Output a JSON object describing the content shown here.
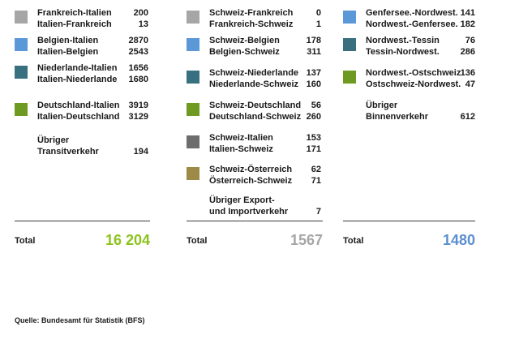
{
  "chart_data": {
    "type": "table",
    "colors": {
      "light_grey": "#a6a6a6",
      "blue": "#5b98d8",
      "teal": "#38707f",
      "green": "#6f9a22",
      "dark_grey": "#6d6d6d",
      "olive": "#9d8a46",
      "total_green": "#8cc31c",
      "total_grey": "#a6a6a6",
      "total_blue": "#5b8fd0"
    },
    "columns": [
      {
        "entries": [
          {
            "color": "light_grey",
            "rows": [
              {
                "label": "Frankreich-Italien",
                "value": "200"
              },
              {
                "label": "Italien-Frankreich",
                "value": "13"
              }
            ]
          },
          {
            "color": "blue",
            "rows": [
              {
                "label": "Belgien-Italien",
                "value": "2870"
              },
              {
                "label": "Italien-Belgien",
                "value": "2543"
              }
            ]
          },
          {
            "color": "teal",
            "rows": [
              {
                "label": "Niederlande-Italien",
                "value": "1656"
              },
              {
                "label": "Italien-Niederlande",
                "value": "1680"
              }
            ]
          },
          {
            "color": "green",
            "rows": [
              {
                "label": "Deutschland-Italien",
                "value": "3919"
              },
              {
                "label": "Italien-Deutschland",
                "value": "3129"
              }
            ]
          },
          {
            "color": null,
            "rows": [
              {
                "label": "Übriger",
                "value": ""
              },
              {
                "label": "Transitverkehr",
                "value": "194"
              }
            ]
          }
        ],
        "total_label": "Total",
        "total_value": "16 204",
        "total_color": "total_green"
      },
      {
        "entries": [
          {
            "color": "light_grey",
            "rows": [
              {
                "label": "Schweiz-Frankreich",
                "value": "0"
              },
              {
                "label": "Frankreich-Schweiz",
                "value": "1"
              }
            ]
          },
          {
            "color": "blue",
            "rows": [
              {
                "label": "Schweiz-Belgien",
                "value": "178"
              },
              {
                "label": "Belgien-Schweiz",
                "value": "311"
              }
            ]
          },
          {
            "color": "teal",
            "rows": [
              {
                "label": "Schweiz-Niederlande",
                "value": "137"
              },
              {
                "label": "Niederlande-Schweiz",
                "value": "160"
              }
            ]
          },
          {
            "color": "green",
            "rows": [
              {
                "label": "Schweiz-Deutschland",
                "value": "56"
              },
              {
                "label": "Deutschland-Schweiz",
                "value": "260"
              }
            ]
          },
          {
            "color": "dark_grey",
            "rows": [
              {
                "label": "Schweiz-Italien",
                "value": "153"
              },
              {
                "label": "Italien-Schweiz",
                "value": "171"
              }
            ]
          },
          {
            "color": "olive",
            "rows": [
              {
                "label": "Schweiz-Österreich",
                "value": "62"
              },
              {
                "label": "Österreich-Schweiz",
                "value": "71"
              }
            ]
          },
          {
            "color": null,
            "rows": [
              {
                "label": "Übriger Export-",
                "value": ""
              },
              {
                "label": "und Importverkehr",
                "value": "7"
              }
            ]
          }
        ],
        "total_label": "Total",
        "total_value": "1567",
        "total_color": "total_grey"
      },
      {
        "entries": [
          {
            "color": "blue",
            "rows": [
              {
                "label": "Genfersee.-Nordwest.",
                "value": "141"
              },
              {
                "label": "Nordwest.-Genfersee.",
                "value": "182"
              }
            ]
          },
          {
            "color": "teal",
            "rows": [
              {
                "label": "Nordwest.-Tessin",
                "value": "76"
              },
              {
                "label": "Tessin-Nordwest.",
                "value": "286"
              }
            ]
          },
          {
            "color": "green",
            "rows": [
              {
                "label": "Nordwest.-Ostschweiz",
                "value": "136"
              },
              {
                "label": "Ostschweiz-Nordwest.",
                "value": "47"
              }
            ]
          },
          {
            "color": null,
            "rows": [
              {
                "label": "Übriger",
                "value": ""
              },
              {
                "label": "Binnenverkehr",
                "value": "612"
              }
            ]
          }
        ],
        "total_label": "Total",
        "total_value": "1480",
        "total_color": "total_blue"
      }
    ],
    "source": "Quelle: Bundesamt für Statistik (BFS)"
  }
}
